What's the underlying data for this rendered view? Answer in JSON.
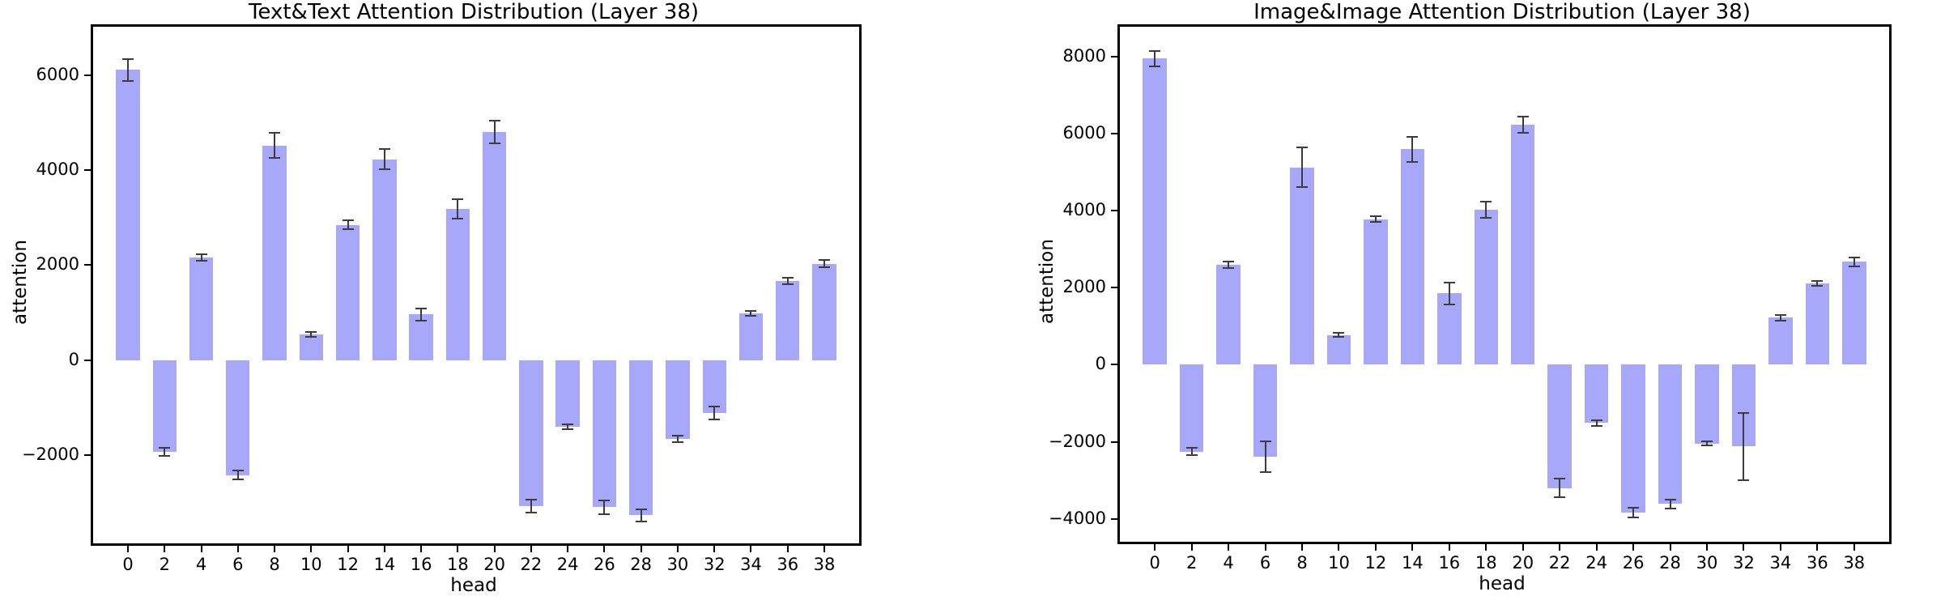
{
  "figure": {
    "background": "#ffffff",
    "bar_color": "#a8a8fa",
    "error_color": "#3c3c3c",
    "axis_color": "#000000"
  },
  "chart_data": [
    {
      "type": "bar",
      "title": "Text&Text Attention Distribution (Layer 38)",
      "xlabel": "head",
      "ylabel": "attention",
      "categories": [
        0,
        2,
        4,
        6,
        8,
        10,
        12,
        14,
        16,
        18,
        20,
        22,
        24,
        26,
        28,
        30,
        32,
        34,
        36,
        38
      ],
      "values": [
        6110,
        -1930,
        2160,
        -2420,
        4520,
        540,
        2850,
        4230,
        960,
        3180,
        4800,
        -3080,
        -1410,
        -3100,
        -3270,
        -1660,
        -1120,
        990,
        1660,
        2030
      ],
      "errors": [
        230,
        90,
        70,
        95,
        270,
        50,
        100,
        210,
        130,
        200,
        240,
        140,
        50,
        145,
        130,
        75,
        135,
        50,
        70,
        75
      ],
      "ylim": [
        -3860,
        7020
      ],
      "yticks": [
        -2000,
        0,
        2000,
        4000,
        6000
      ],
      "xlim": [
        -1.9,
        39.9
      ],
      "bar_width_units": 1.3,
      "grid": false,
      "legend_position": "none",
      "bar_color": "#a8a8fa",
      "error_color": "#3c3c3c"
    },
    {
      "type": "bar",
      "title": "Image&Image Attention Distribution (Layer 38)",
      "xlabel": "head",
      "ylabel": "attention",
      "categories": [
        0,
        2,
        4,
        6,
        8,
        10,
        12,
        14,
        16,
        18,
        20,
        22,
        24,
        26,
        28,
        30,
        32,
        34,
        36,
        38
      ],
      "values": [
        7950,
        -2250,
        2590,
        -2390,
        5120,
        770,
        3780,
        5590,
        1850,
        4030,
        6230,
        -3200,
        -1510,
        -3830,
        -3610,
        -2040,
        -2120,
        1220,
        2110,
        2670
      ],
      "errors": [
        200,
        100,
        80,
        400,
        510,
        50,
        80,
        320,
        290,
        210,
        210,
        240,
        70,
        120,
        110,
        45,
        870,
        70,
        70,
        110
      ],
      "ylim": [
        -4590,
        8770
      ],
      "yticks": [
        -4000,
        -2000,
        0,
        2000,
        4000,
        6000,
        8000
      ],
      "xlim": [
        -1.9,
        39.9
      ],
      "bar_width_units": 1.3,
      "grid": false,
      "legend_position": "none",
      "bar_color": "#a8a8fa",
      "error_color": "#3c3c3c"
    }
  ]
}
